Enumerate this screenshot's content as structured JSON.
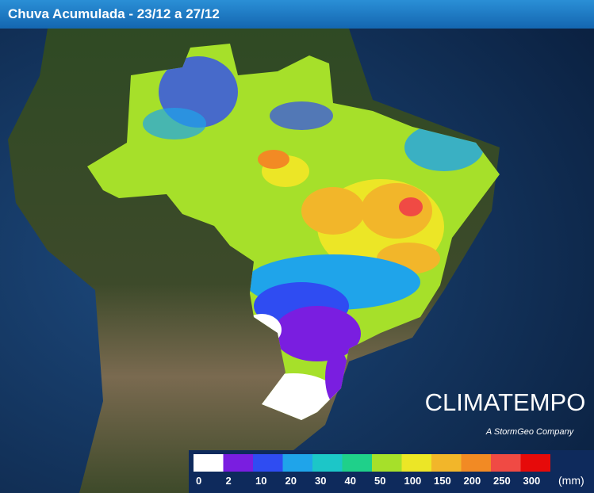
{
  "header": {
    "title": "Chuva Acumulada - 23/12 a 27/12"
  },
  "logo": {
    "name": "CLIMATEMPO",
    "tagline": "A StormGeo Company"
  },
  "legend": {
    "unit": "(mm)",
    "values": [
      0,
      2,
      10,
      20,
      30,
      40,
      50,
      100,
      150,
      200,
      250,
      300
    ],
    "colors": [
      "#ffffff",
      "#7a1ee0",
      "#2f4cf2",
      "#1fa4ea",
      "#1cc6c8",
      "#1fd08a",
      "#a6e02a",
      "#ece626",
      "#f2b62a",
      "#f28a24",
      "#f04a44",
      "#e60a0a"
    ]
  }
}
